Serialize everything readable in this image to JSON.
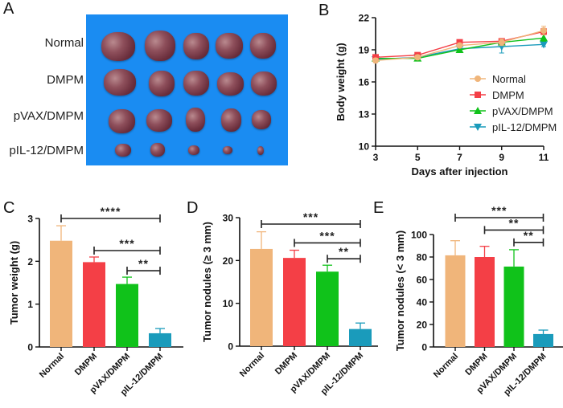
{
  "panels": {
    "A": {
      "letter": "A",
      "row_labels": [
        "Normal",
        "DMPM",
        "pVAX/DMPM",
        "pIL-12/DMPM"
      ],
      "description": "Photograph of excised tumor nodules on blue background, 5 per group"
    },
    "B": {
      "letter": "B"
    },
    "C": {
      "letter": "C"
    },
    "D": {
      "letter": "D"
    },
    "E": {
      "letter": "E"
    }
  },
  "colors": {
    "Normal": "#f0b57a",
    "DMPM": "#f43f46",
    "pVAX/DMPM": "#10c21a",
    "pIL-12/DMPM": "#1a9bbb",
    "axis": "#111111",
    "photo_bg": "#1a8cf2"
  },
  "chart_data": [
    {
      "id": "B",
      "type": "line",
      "title": "",
      "xlabel": "Days after injection",
      "ylabel": "Body weight (g)",
      "x": [
        3,
        5,
        7,
        9,
        11
      ],
      "xticks": [
        "3",
        "5",
        "7",
        "9",
        "11"
      ],
      "yticks": [
        "10",
        "13",
        "16",
        "19",
        "22"
      ],
      "xlim": [
        3,
        11
      ],
      "ylim": [
        10,
        22
      ],
      "legend": "right-middle",
      "series": [
        {
          "name": "Normal",
          "marker": "circle",
          "values": [
            18.0,
            18.3,
            19.4,
            19.7,
            20.8
          ],
          "err": [
            0.2,
            0.2,
            0.2,
            0.3,
            0.4
          ]
        },
        {
          "name": "DMPM",
          "marker": "square",
          "values": [
            18.3,
            18.5,
            19.7,
            19.8,
            20.7
          ],
          "err": [
            0.2,
            0.2,
            0.2,
            0.2,
            0.3
          ]
        },
        {
          "name": "pVAX/DMPM",
          "marker": "triangle-up",
          "values": [
            18.2,
            18.2,
            19.0,
            19.7,
            20.1
          ],
          "err": [
            0.2,
            0.2,
            0.2,
            0.2,
            0.3
          ]
        },
        {
          "name": "pIL-12/DMPM",
          "marker": "triangle-down",
          "values": [
            18.1,
            18.3,
            19.1,
            19.3,
            19.5
          ],
          "err": [
            0.2,
            0.2,
            0.2,
            0.6,
            0.2
          ]
        }
      ]
    },
    {
      "id": "C",
      "type": "bar",
      "ylabel": "Tumor weight (g)",
      "xlabel": "",
      "categories": [
        "Normal",
        "DMPM",
        "pVAX/DMPM",
        "pIL-12/DMPM"
      ],
      "values": [
        2.48,
        1.98,
        1.47,
        0.32
      ],
      "errors": [
        0.35,
        0.12,
        0.16,
        0.11
      ],
      "ylim": [
        0,
        3
      ],
      "yticks": [
        "0",
        "1",
        "2",
        "3"
      ],
      "significance": [
        {
          "from": 0,
          "to": 3,
          "label": "****",
          "level": 3.0
        },
        {
          "from": 1,
          "to": 3,
          "label": "***",
          "level": 2.25
        },
        {
          "from": 2,
          "to": 3,
          "label": "**",
          "level": 1.78
        }
      ]
    },
    {
      "id": "D",
      "type": "bar",
      "ylabel": "Tumor nodules (≥ 3 mm)",
      "xlabel": "",
      "categories": [
        "Normal",
        "DMPM",
        "pVAX/DMPM",
        "pIL-12/DMPM"
      ],
      "values": [
        22.7,
        20.6,
        17.4,
        4.0
      ],
      "errors": [
        4.0,
        1.8,
        1.5,
        1.4
      ],
      "ylim": [
        0,
        30
      ],
      "yticks": [
        "0",
        "10",
        "20",
        "30"
      ],
      "significance": [
        {
          "from": 0,
          "to": 3,
          "label": "***",
          "level": 28.5
        },
        {
          "from": 1,
          "to": 3,
          "label": "***",
          "level": 24.1
        },
        {
          "from": 2,
          "to": 3,
          "label": "**",
          "level": 20.4
        }
      ]
    },
    {
      "id": "E",
      "type": "bar",
      "ylabel": "Tumor nodules (< 3 mm)",
      "xlabel": "",
      "categories": [
        "Normal",
        "DMPM",
        "pVAX/DMPM",
        "pIL-12/DMPM"
      ],
      "values": [
        81.5,
        80.0,
        71.5,
        11.5
      ],
      "errors": [
        13.0,
        9.5,
        15.0,
        3.5
      ],
      "ylim": [
        0,
        100
      ],
      "yticks": [
        "0",
        "20",
        "40",
        "60",
        "80",
        "100"
      ],
      "significance": [
        {
          "from": 0,
          "to": 3,
          "label": "***",
          "level": 115
        },
        {
          "from": 1,
          "to": 3,
          "label": "**",
          "level": 104
        },
        {
          "from": 2,
          "to": 3,
          "label": "**",
          "level": 93
        }
      ]
    }
  ]
}
